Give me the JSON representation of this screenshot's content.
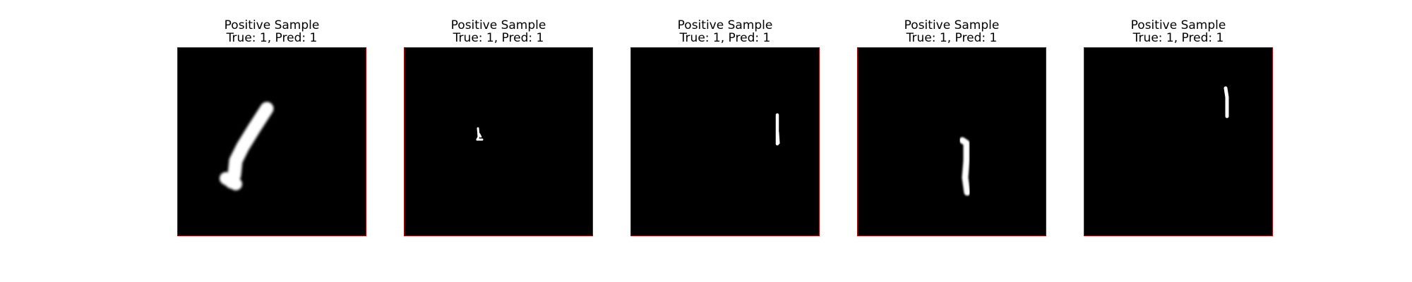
{
  "figure": {
    "panels": [
      {
        "title": "Positive Sample",
        "subtitle": "True: 1, Pred: 1",
        "digit": "1"
      },
      {
        "title": "Positive Sample",
        "subtitle": "True: 1, Pred: 1",
        "digit": "1"
      },
      {
        "title": "Positive Sample",
        "subtitle": "True: 1, Pred: 1",
        "digit": "1"
      },
      {
        "title": "Positive Sample",
        "subtitle": "True: 1, Pred: 1",
        "digit": "1"
      },
      {
        "title": "Positive Sample",
        "subtitle": "True: 1, Pred: 1",
        "digit": "1"
      }
    ],
    "colors": {
      "frame": "#b40000",
      "background": "#000000",
      "stroke": "#ffffff"
    }
  }
}
